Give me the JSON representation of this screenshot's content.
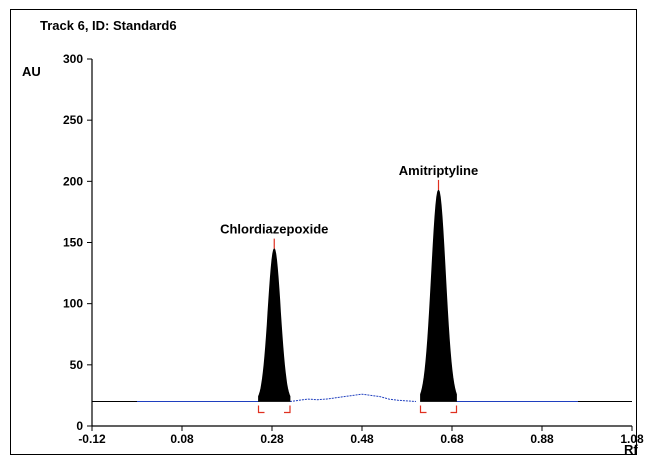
{
  "chart_data": {
    "type": "line",
    "title": "Track 6, ID: Standard6",
    "xlabel": "Rf",
    "ylabel": "AU",
    "xlim": [
      -0.12,
      1.08
    ],
    "ylim": [
      0,
      300
    ],
    "x_ticks": [
      "-0.12",
      "0.08",
      "0.28",
      "0.48",
      "0.68",
      "0.88",
      "1.08"
    ],
    "y_ticks": [
      "0",
      "50",
      "100",
      "150",
      "200",
      "250",
      "300"
    ],
    "baseline": 20,
    "peaks": [
      {
        "name": "Chlordiazepoxide",
        "rf": 0.285,
        "height": 145,
        "start": 0.25,
        "end": 0.32
      },
      {
        "name": "Amitriptyline",
        "rf": 0.65,
        "height": 193,
        "start": 0.61,
        "end": 0.69
      }
    ],
    "noise_series": {
      "x": [
        0.32,
        0.34,
        0.36,
        0.38,
        0.4,
        0.42,
        0.44,
        0.46,
        0.48,
        0.5,
        0.52,
        0.54,
        0.56,
        0.58,
        0.6
      ],
      "y": [
        20,
        21,
        22,
        21.5,
        22,
        23,
        24,
        25,
        26,
        25,
        24,
        22,
        21,
        20.5,
        20
      ]
    },
    "colors": {
      "trace": "#1f3fbf",
      "peak_fill": "#000000",
      "marker": "#e03020"
    }
  }
}
